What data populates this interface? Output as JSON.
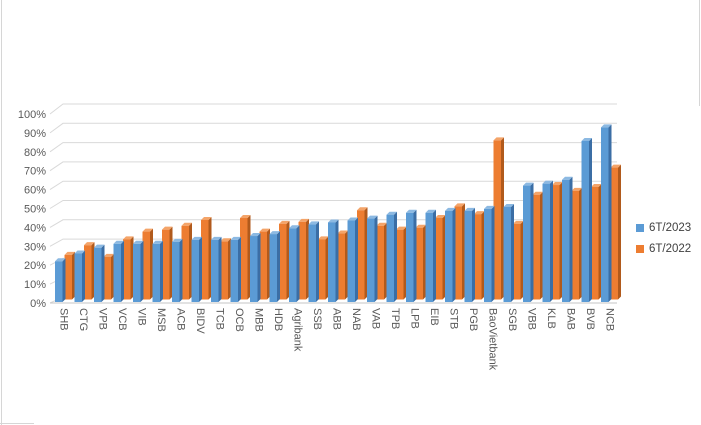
{
  "chart_data": {
    "type": "bar",
    "style": "3d-clustered-column",
    "title": "",
    "xlabel": "",
    "ylabel": "",
    "categories": [
      "SHB",
      "CTG",
      "VPB",
      "VCB",
      "VIB",
      "MSB",
      "ACB",
      "BIDV",
      "TCB",
      "OCB",
      "MBB",
      "HDB",
      "Agribank",
      "SSB",
      "ABB",
      "NAB",
      "VAB",
      "TPB",
      "LPB",
      "EIB",
      "STB",
      "PGB",
      "BaoVietbank",
      "SGB",
      "VBB",
      "KLB",
      "BAB",
      "BVB",
      "NCB"
    ],
    "series": [
      {
        "name": "6T/2023",
        "values": [
          21,
          25,
          28,
          30,
          30,
          30,
          31,
          32,
          32,
          32,
          34,
          35,
          38,
          40,
          41,
          42,
          43,
          45,
          46,
          46,
          47,
          47,
          48,
          49,
          60,
          61,
          63,
          83,
          90
        ]
      },
      {
        "name": "6T/2022",
        "values": [
          23,
          28,
          22,
          31,
          35,
          36,
          38,
          41,
          30,
          42,
          35,
          39,
          40,
          31,
          34,
          46,
          38,
          36,
          37,
          42,
          48,
          44,
          82,
          39,
          54,
          59,
          56,
          58,
          68
        ]
      }
    ],
    "y_tick_labels": [
      "0%",
      "10%",
      "20%",
      "30%",
      "40%",
      "50%",
      "60%",
      "70%",
      "80%",
      "90%",
      "100%"
    ],
    "ylim": [
      0,
      100
    ],
    "grid": true,
    "legend_position": "right",
    "x_label_rotation_deg": 90,
    "series_colors": {
      "6T/2023": {
        "front": "#5B9BD5",
        "side": "#3B6EA5",
        "top": "#8CB9E2"
      },
      "6T/2022": {
        "front": "#ED7D31",
        "side": "#B15A1C",
        "top": "#F4A469"
      }
    },
    "text_color": "#595959",
    "gridline_color": "#D9D9D9",
    "axis_line_color": "#C4C4C4"
  }
}
